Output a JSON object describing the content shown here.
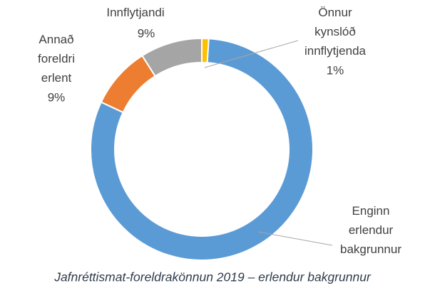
{
  "chart_data": {
    "type": "donut",
    "caption": "Jafnréttismat-foreldrakönnun 2019 – erlendur bakgrunnur",
    "categories": [
      "Önnur kynslóð innflytjenda",
      "Enginn erlendur bakgrunnur",
      "Annað foreldri erlent",
      "Innflytjandi"
    ],
    "values": [
      1,
      81,
      9,
      9
    ],
    "value_labels": [
      "1%",
      "81%",
      "9%",
      "9%"
    ],
    "colors": [
      "#ffc000",
      "#5b9bd5",
      "#ed7d31",
      "#a5a5a5"
    ]
  }
}
